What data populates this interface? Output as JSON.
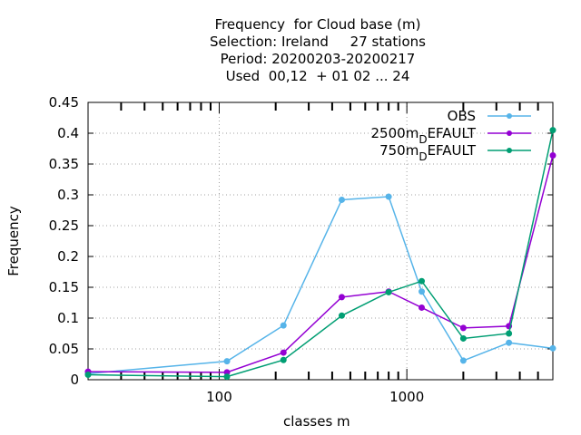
{
  "chart_data": {
    "type": "line",
    "title_lines": [
      "Frequency  for Cloud base (m)",
      "Selection: Ireland     27 stations",
      "Period: 20200203-20200217",
      "Used  00,12  + 01 02 ... 24"
    ],
    "xlabel": "classes m",
    "ylabel": "Frequency",
    "x_scale": "log",
    "xlim": [
      20,
      6000
    ],
    "ylim": [
      0,
      0.45
    ],
    "x_ticks": [
      100,
      1000
    ],
    "y_ticks": [
      "0",
      "0.05",
      "0.1",
      "0.15",
      "0.2",
      "0.25",
      "0.3",
      "0.35",
      "0.4",
      "0.45"
    ],
    "grid": true,
    "legend_position": "top-right",
    "series": [
      {
        "name": "OBS",
        "color": "#56b4e9",
        "points": [
          [
            20,
            0.01
          ],
          [
            110,
            0.03
          ],
          [
            220,
            0.088
          ],
          [
            450,
            0.292
          ],
          [
            800,
            0.297
          ],
          [
            1200,
            0.143
          ],
          [
            2000,
            0.031
          ],
          [
            3500,
            0.06
          ],
          [
            6000,
            0.051
          ]
        ]
      },
      {
        "name": "2500m_DEFAULT",
        "legend_main": "2500m",
        "legend_sub": "D",
        "legend_rest": "EFAULT",
        "color": "#9400d3",
        "points": [
          [
            20,
            0.013
          ],
          [
            110,
            0.012
          ],
          [
            220,
            0.044
          ],
          [
            450,
            0.134
          ],
          [
            800,
            0.143
          ],
          [
            1200,
            0.117
          ],
          [
            2000,
            0.084
          ],
          [
            3500,
            0.087
          ],
          [
            6000,
            0.364
          ]
        ]
      },
      {
        "name": "750m_DEFAULT",
        "legend_main": "750m",
        "legend_sub": "D",
        "legend_rest": "EFAULT",
        "color": "#009e73",
        "points": [
          [
            20,
            0.008
          ],
          [
            110,
            0.005
          ],
          [
            220,
            0.032
          ],
          [
            450,
            0.104
          ],
          [
            800,
            0.142
          ],
          [
            1200,
            0.16
          ],
          [
            2000,
            0.067
          ],
          [
            3500,
            0.075
          ],
          [
            6000,
            0.405
          ]
        ]
      }
    ]
  }
}
